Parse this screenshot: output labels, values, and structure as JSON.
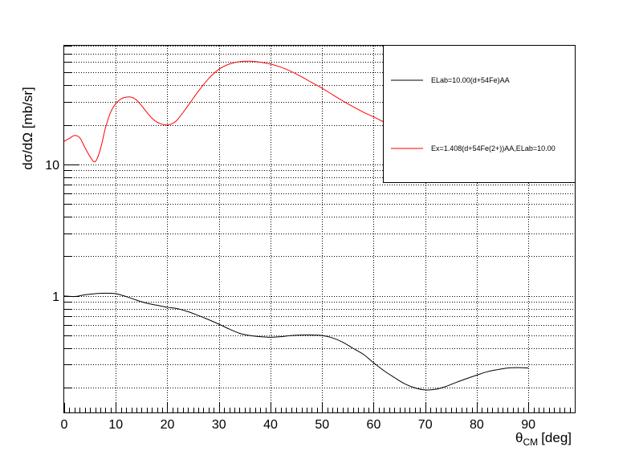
{
  "chart_data": {
    "type": "line",
    "title": "",
    "xlabel": {
      "symbol": "θ",
      "subscript": "CM",
      "unit": "[deg]"
    },
    "ylabel": "dσ/dΩ [mb/sr]",
    "xlim": [
      0,
      99
    ],
    "ylim": [
      0.13,
      80
    ],
    "yscale": "log",
    "grid": true,
    "legend_position": "top-right",
    "x_ticks": [
      "0",
      "10",
      "20",
      "30",
      "40",
      "50",
      "60",
      "70",
      "80",
      "90"
    ],
    "y_ticks": [
      "1",
      "10"
    ],
    "series": [
      {
        "name": "ELab=10.00(d+54Fe)AA",
        "color": "#000000",
        "x": [
          0,
          2,
          4,
          6,
          8,
          10,
          12,
          14,
          16,
          18,
          20,
          22,
          24,
          26,
          28,
          30,
          32,
          34,
          36,
          38,
          40,
          42,
          44,
          46,
          48,
          50,
          52,
          54,
          56,
          58,
          60,
          62,
          64,
          66,
          68,
          70,
          72,
          74,
          76,
          78,
          80,
          82,
          84,
          86,
          88,
          90
        ],
        "y": [
          1.0,
          0.99,
          1.02,
          1.04,
          1.05,
          1.04,
          0.99,
          0.93,
          0.88,
          0.85,
          0.82,
          0.8,
          0.76,
          0.71,
          0.66,
          0.61,
          0.56,
          0.52,
          0.5,
          0.49,
          0.485,
          0.49,
          0.5,
          0.505,
          0.505,
          0.5,
          0.48,
          0.445,
          0.4,
          0.36,
          0.31,
          0.27,
          0.24,
          0.215,
          0.2,
          0.193,
          0.195,
          0.205,
          0.22,
          0.235,
          0.25,
          0.265,
          0.275,
          0.283,
          0.285,
          0.283
        ]
      },
      {
        "name": "Ex=1.408(d+54Fe(2+))AA,ELab=10.00",
        "color": "#ff0000",
        "x": [
          0,
          1,
          2,
          3,
          4,
          5,
          6,
          7,
          8,
          9,
          10,
          11,
          12,
          13,
          14,
          15,
          16,
          17,
          18,
          19,
          20,
          21,
          22,
          24,
          26,
          28,
          30,
          32,
          34,
          36,
          38,
          40,
          42,
          44,
          46,
          48,
          50,
          52,
          54,
          56,
          58,
          60,
          62
        ],
        "y": [
          15.0,
          15.8,
          16.6,
          16.0,
          13.5,
          11.5,
          10.5,
          13.0,
          19.0,
          25.0,
          29.0,
          31.5,
          32.5,
          32.5,
          31.0,
          28.0,
          25.0,
          22.5,
          21.0,
          20.2,
          20.0,
          20.5,
          22.0,
          28.0,
          36.0,
          45.0,
          53.0,
          58.0,
          60.5,
          61.0,
          60.0,
          58.0,
          55.0,
          51.0,
          46.5,
          42.0,
          38.0,
          34.0,
          30.5,
          27.5,
          25.0,
          23.0,
          21.0
        ]
      }
    ]
  }
}
